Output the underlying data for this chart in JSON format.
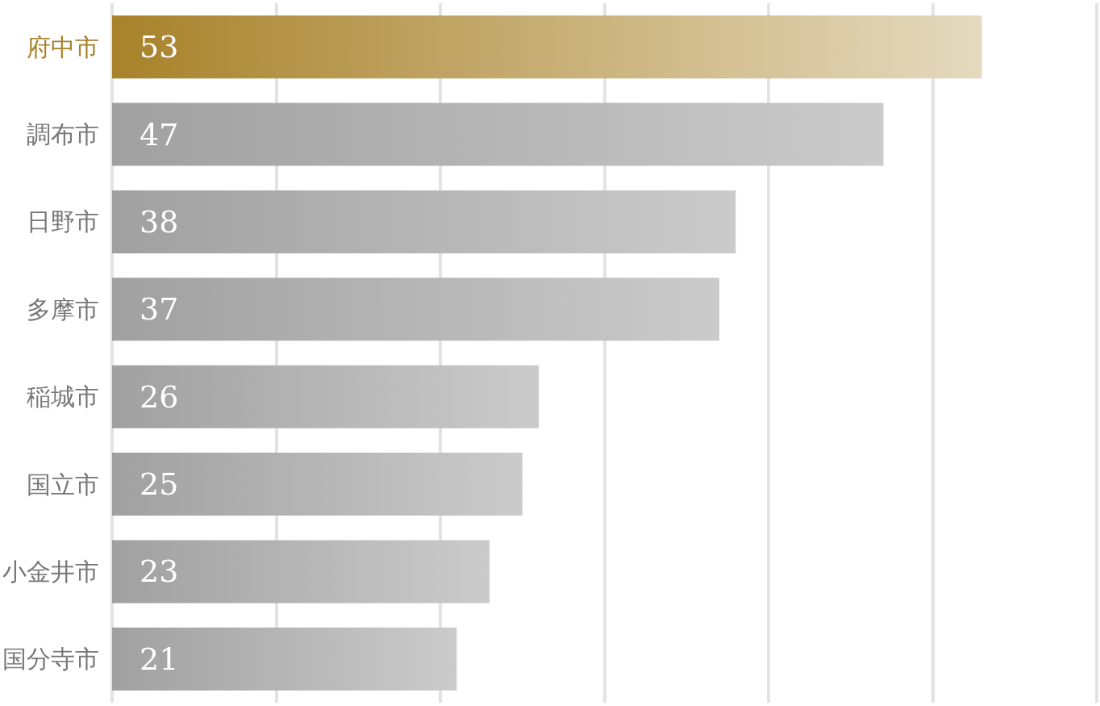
{
  "chart_data": {
    "type": "bar",
    "orientation": "horizontal",
    "categories": [
      "府中市",
      "調布市",
      "日野市",
      "多摩市",
      "稲城市",
      "国立市",
      "小金井市",
      "国分寺市"
    ],
    "values": [
      53,
      47,
      38,
      37,
      26,
      25,
      23,
      21
    ],
    "colors": [
      "#a8822a",
      "#a0a0a0",
      "#a0a0a0",
      "#a0a0a0",
      "#a0a0a0",
      "#a0a0a0",
      "#a0a0a0",
      "#a0a0a0"
    ],
    "xlim": [
      0,
      60
    ],
    "xticks": [
      0,
      10,
      20,
      30,
      40,
      50,
      60
    ],
    "tick_labels": "y",
    "grid": "x",
    "data_labels": true
  }
}
